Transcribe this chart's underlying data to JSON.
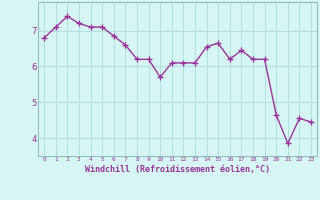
{
  "x": [
    0,
    1,
    2,
    3,
    4,
    5,
    6,
    7,
    8,
    9,
    10,
    11,
    12,
    13,
    14,
    15,
    16,
    17,
    18,
    19,
    20,
    21,
    22,
    23
  ],
  "y": [
    6.8,
    7.1,
    7.4,
    7.2,
    7.1,
    7.1,
    6.85,
    6.6,
    6.2,
    6.2,
    5.7,
    6.1,
    6.1,
    6.1,
    6.55,
    6.65,
    6.2,
    6.45,
    6.2,
    6.2,
    4.65,
    3.85,
    4.55,
    4.45
  ],
  "line_color": "#993399",
  "marker": "+",
  "marker_size": 4,
  "line_width": 1.0,
  "background_color": "#d6f5f5",
  "grid_color": "#aadddd",
  "xlabel": "Windchill (Refroidissement éolien,°C)",
  "xlabel_color": "#993399",
  "tick_color": "#993399",
  "ylim": [
    3.5,
    7.8
  ],
  "xlim": [
    -0.5,
    23.5
  ],
  "yticks": [
    4,
    5,
    6,
    7
  ],
  "xticks": [
    0,
    1,
    2,
    3,
    4,
    5,
    6,
    7,
    8,
    9,
    10,
    11,
    12,
    13,
    14,
    15,
    16,
    17,
    18,
    19,
    20,
    21,
    22,
    23
  ]
}
